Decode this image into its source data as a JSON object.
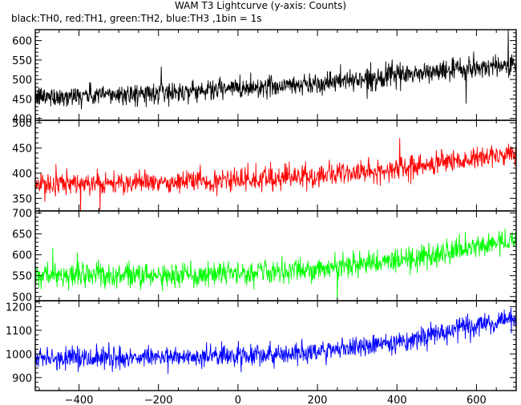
{
  "figure": {
    "title": "WAM T3 Lightcurve (y-axis: Counts)",
    "subtitle": "black:TH0, red:TH1, green:TH2, blue:TH3 ,1bin = 1s"
  },
  "chart_data": [
    {
      "type": "line",
      "series": [
        {
          "name": "TH0",
          "color": "#000000"
        }
      ],
      "x_range": [
        -510,
        700
      ],
      "ylim": [
        395,
        628
      ],
      "yticks": [
        400,
        450,
        500,
        550,
        600
      ],
      "trend": {
        "x": [
          -500,
          -200,
          0,
          200,
          400,
          600,
          700
        ],
        "y": [
          455,
          465,
          478,
          490,
          510,
          530,
          540
        ]
      },
      "noise_amplitude": 30,
      "x_axis_labels_shown": false
    },
    {
      "type": "line",
      "series": [
        {
          "name": "TH1",
          "color": "#ff0000"
        }
      ],
      "x_range": [
        -510,
        700
      ],
      "ylim": [
        325,
        505
      ],
      "yticks": [
        350,
        400,
        450,
        500
      ],
      "trend": {
        "x": [
          -500,
          -200,
          0,
          200,
          400,
          600,
          700
        ],
        "y": [
          378,
          382,
          385,
          395,
          410,
          430,
          440
        ]
      },
      "noise_amplitude": 25,
      "x_axis_labels_shown": false
    },
    {
      "type": "line",
      "series": [
        {
          "name": "TH2",
          "color": "#00ff00"
        }
      ],
      "x_range": [
        -510,
        700
      ],
      "ylim": [
        490,
        705
      ],
      "yticks": [
        500,
        550,
        600,
        650,
        700
      ],
      "trend": {
        "x": [
          -500,
          -200,
          0,
          200,
          400,
          600,
          700
        ],
        "y": [
          552,
          550,
          555,
          565,
          585,
          620,
          635
        ]
      },
      "noise_amplitude": 32,
      "x_axis_labels_shown": false
    },
    {
      "type": "line",
      "series": [
        {
          "name": "TH3",
          "color": "#0000ff"
        }
      ],
      "x_range": [
        -510,
        700
      ],
      "ylim": [
        845,
        1225
      ],
      "yticks": [
        900,
        1000,
        1100,
        1200
      ],
      "trend": {
        "x": [
          -500,
          -200,
          0,
          200,
          400,
          600,
          700
        ],
        "y": [
          980,
          985,
          990,
          1010,
          1050,
          1120,
          1150
        ]
      },
      "noise_amplitude": 50,
      "xticks": [
        -400,
        -200,
        0,
        200,
        400,
        600
      ],
      "x_axis_labels_shown": true
    }
  ]
}
